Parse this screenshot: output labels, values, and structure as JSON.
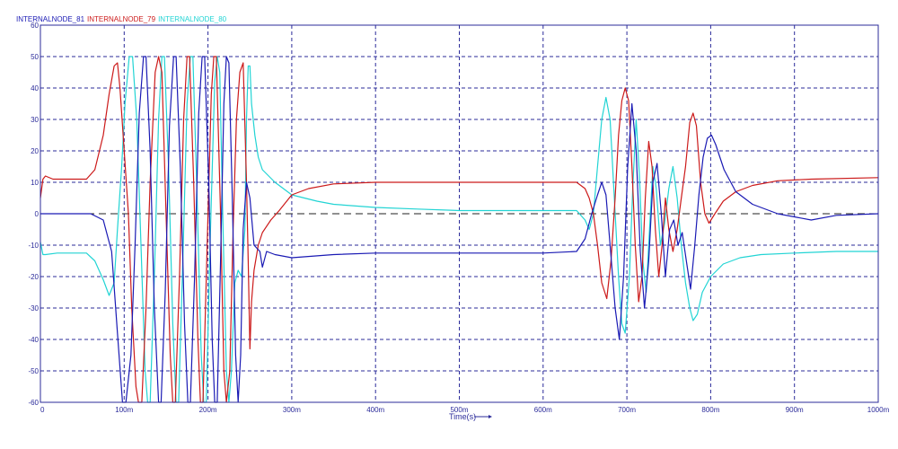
{
  "chart_data": {
    "type": "line",
    "xlabel": "Time(s)",
    "x_ticks": [
      "0",
      "100m",
      "200m",
      "300m",
      "400m",
      "500m",
      "600m",
      "700m",
      "800m",
      "900m",
      "1000m"
    ],
    "y_ticks": [
      "60",
      "50",
      "40",
      "30",
      "20",
      "10",
      "0",
      "-10",
      "-20",
      "-30",
      "-40",
      "-50",
      "-60"
    ],
    "xlim": [
      0,
      1000
    ],
    "ylim": [
      -60,
      60
    ],
    "grid": true,
    "legend_placement": "top-left",
    "series": [
      {
        "name": "INTERNALNODE_81",
        "color": "#1a1ab4",
        "points": [
          [
            0,
            0
          ],
          [
            60,
            0
          ],
          [
            75,
            -2
          ],
          [
            85,
            -12
          ],
          [
            92,
            -38
          ],
          [
            98,
            -60
          ],
          [
            102,
            -60
          ],
          [
            108,
            -45
          ],
          [
            113,
            -10
          ],
          [
            118,
            32
          ],
          [
            123,
            50
          ],
          [
            126,
            50
          ],
          [
            131,
            20
          ],
          [
            136,
            -30
          ],
          [
            141,
            -60
          ],
          [
            144,
            -60
          ],
          [
            149,
            -25
          ],
          [
            154,
            28
          ],
          [
            159,
            50
          ],
          [
            162,
            50
          ],
          [
            167,
            15
          ],
          [
            172,
            -35
          ],
          [
            176,
            -60
          ],
          [
            179,
            -60
          ],
          [
            184,
            -20
          ],
          [
            189,
            32
          ],
          [
            193,
            50
          ],
          [
            196,
            50
          ],
          [
            201,
            10
          ],
          [
            205,
            -40
          ],
          [
            208,
            -60
          ],
          [
            211,
            -60
          ],
          [
            215,
            -15
          ],
          [
            219,
            35
          ],
          [
            222,
            50
          ],
          [
            225,
            48
          ],
          [
            229,
            5
          ],
          [
            233,
            -45
          ],
          [
            236,
            -60
          ],
          [
            239,
            -45
          ],
          [
            242,
            -5
          ],
          [
            246,
            10
          ],
          [
            250,
            5
          ],
          [
            255,
            -10
          ],
          [
            262,
            -12
          ],
          [
            265,
            -17
          ],
          [
            270,
            -12
          ],
          [
            280,
            -13
          ],
          [
            300,
            -14
          ],
          [
            350,
            -13
          ],
          [
            400,
            -12.5
          ],
          [
            500,
            -12.5
          ],
          [
            600,
            -12.5
          ],
          [
            640,
            -12
          ],
          [
            650,
            -8
          ],
          [
            658,
            0
          ],
          [
            665,
            6
          ],
          [
            670,
            10
          ],
          [
            675,
            6
          ],
          [
            680,
            -10
          ],
          [
            686,
            -30
          ],
          [
            691,
            -40
          ],
          [
            696,
            -20
          ],
          [
            701,
            15
          ],
          [
            706,
            35
          ],
          [
            711,
            20
          ],
          [
            716,
            -12
          ],
          [
            721,
            -30
          ],
          [
            726,
            -15
          ],
          [
            731,
            10
          ],
          [
            736,
            16
          ],
          [
            741,
            0
          ],
          [
            746,
            -20
          ],
          [
            751,
            -5
          ],
          [
            756,
            -2
          ],
          [
            761,
            -10
          ],
          [
            766,
            -6
          ],
          [
            771,
            -15
          ],
          [
            776,
            -24
          ],
          [
            781,
            -10
          ],
          [
            786,
            6
          ],
          [
            791,
            18
          ],
          [
            796,
            24
          ],
          [
            801,
            25
          ],
          [
            806,
            22
          ],
          [
            816,
            14
          ],
          [
            830,
            7
          ],
          [
            850,
            3
          ],
          [
            880,
            0
          ],
          [
            920,
            -2
          ],
          [
            950,
            -0.5
          ],
          [
            1000,
            0
          ]
        ]
      },
      {
        "name": "INTERNALNODE_79",
        "color": "#cc1a1a",
        "points": [
          [
            0,
            5
          ],
          [
            3,
            11
          ],
          [
            6,
            12
          ],
          [
            15,
            11
          ],
          [
            55,
            11
          ],
          [
            65,
            14
          ],
          [
            75,
            25
          ],
          [
            82,
            38
          ],
          [
            88,
            47
          ],
          [
            92,
            48
          ],
          [
            95,
            40
          ],
          [
            100,
            20
          ],
          [
            105,
            0
          ],
          [
            109,
            -30
          ],
          [
            114,
            -55
          ],
          [
            117,
            -60
          ],
          [
            121,
            -60
          ],
          [
            126,
            -30
          ],
          [
            131,
            10
          ],
          [
            137,
            45
          ],
          [
            141,
            50
          ],
          [
            145,
            45
          ],
          [
            150,
            0
          ],
          [
            155,
            -45
          ],
          [
            158,
            -60
          ],
          [
            161,
            -60
          ],
          [
            166,
            -20
          ],
          [
            171,
            30
          ],
          [
            175,
            50
          ],
          [
            178,
            50
          ],
          [
            183,
            10
          ],
          [
            188,
            -40
          ],
          [
            191,
            -60
          ],
          [
            194,
            -60
          ],
          [
            199,
            -10
          ],
          [
            204,
            38
          ],
          [
            207,
            50
          ],
          [
            210,
            50
          ],
          [
            215,
            0
          ],
          [
            219,
            -50
          ],
          [
            222,
            -60
          ],
          [
            226,
            -50
          ],
          [
            230,
            -5
          ],
          [
            234,
            30
          ],
          [
            238,
            45
          ],
          [
            242,
            48
          ],
          [
            246,
            10
          ],
          [
            248,
            -15
          ],
          [
            250,
            -43
          ],
          [
            252,
            -28
          ],
          [
            255,
            -18
          ],
          [
            260,
            -10
          ],
          [
            265,
            -6
          ],
          [
            275,
            -2
          ],
          [
            285,
            1
          ],
          [
            300,
            6
          ],
          [
            320,
            8
          ],
          [
            350,
            9.5
          ],
          [
            400,
            10
          ],
          [
            500,
            10
          ],
          [
            600,
            10
          ],
          [
            640,
            10
          ],
          [
            650,
            8
          ],
          [
            655,
            5
          ],
          [
            660,
            0
          ],
          [
            665,
            -10
          ],
          [
            670,
            -22
          ],
          [
            676,
            -27
          ],
          [
            681,
            -15
          ],
          [
            686,
            5
          ],
          [
            690,
            25
          ],
          [
            694,
            36
          ],
          [
            698,
            40
          ],
          [
            702,
            36
          ],
          [
            706,
            15
          ],
          [
            710,
            -10
          ],
          [
            714,
            -28
          ],
          [
            718,
            -20
          ],
          [
            722,
            5
          ],
          [
            726,
            23
          ],
          [
            730,
            15
          ],
          [
            734,
            -5
          ],
          [
            738,
            -20
          ],
          [
            742,
            -10
          ],
          [
            746,
            5
          ],
          [
            750,
            -5
          ],
          [
            755,
            -12
          ],
          [
            760,
            -5
          ],
          [
            765,
            5
          ],
          [
            770,
            15
          ],
          [
            775,
            29
          ],
          [
            779,
            32
          ],
          [
            783,
            28
          ],
          [
            788,
            10
          ],
          [
            793,
            0
          ],
          [
            798,
            -3
          ],
          [
            805,
            0
          ],
          [
            815,
            4
          ],
          [
            830,
            7
          ],
          [
            850,
            9
          ],
          [
            880,
            10.5
          ],
          [
            920,
            11
          ],
          [
            1000,
            11.5
          ]
        ]
      },
      {
        "name": "INTERNALNODE_80",
        "color": "#22d4d4",
        "points": [
          [
            0,
            -9
          ],
          [
            3,
            -13
          ],
          [
            6,
            -13
          ],
          [
            20,
            -12.5
          ],
          [
            55,
            -12.5
          ],
          [
            65,
            -15
          ],
          [
            75,
            -21
          ],
          [
            82,
            -26
          ],
          [
            88,
            -22
          ],
          [
            92,
            -5
          ],
          [
            97,
            15
          ],
          [
            101,
            35
          ],
          [
            106,
            50
          ],
          [
            110,
            50
          ],
          [
            115,
            30
          ],
          [
            120,
            -10
          ],
          [
            125,
            -50
          ],
          [
            128,
            -60
          ],
          [
            131,
            -60
          ],
          [
            136,
            -20
          ],
          [
            141,
            30
          ],
          [
            145,
            50
          ],
          [
            148,
            50
          ],
          [
            153,
            15
          ],
          [
            158,
            -35
          ],
          [
            162,
            -60
          ],
          [
            165,
            -60
          ],
          [
            170,
            -15
          ],
          [
            175,
            35
          ],
          [
            179,
            50
          ],
          [
            182,
            50
          ],
          [
            187,
            5
          ],
          [
            192,
            -45
          ],
          [
            195,
            -60
          ],
          [
            198,
            -60
          ],
          [
            203,
            -5
          ],
          [
            208,
            42
          ],
          [
            211,
            50
          ],
          [
            214,
            45
          ],
          [
            218,
            -5
          ],
          [
            222,
            -50
          ],
          [
            225,
            -60
          ],
          [
            228,
            -50
          ],
          [
            232,
            -22
          ],
          [
            236,
            -18
          ],
          [
            240,
            -20
          ],
          [
            244,
            -5
          ],
          [
            246,
            30
          ],
          [
            248,
            47
          ],
          [
            250,
            47
          ],
          [
            252,
            35
          ],
          [
            256,
            25
          ],
          [
            260,
            18
          ],
          [
            265,
            14
          ],
          [
            280,
            10
          ],
          [
            300,
            6
          ],
          [
            330,
            4
          ],
          [
            350,
            3
          ],
          [
            400,
            2
          ],
          [
            450,
            1.5
          ],
          [
            500,
            1
          ],
          [
            600,
            1
          ],
          [
            640,
            1
          ],
          [
            650,
            -2
          ],
          [
            655,
            -5
          ],
          [
            660,
            0
          ],
          [
            665,
            15
          ],
          [
            670,
            30
          ],
          [
            675,
            37
          ],
          [
            680,
            30
          ],
          [
            685,
            5
          ],
          [
            690,
            -20
          ],
          [
            694,
            -35
          ],
          [
            698,
            -38
          ],
          [
            703,
            -20
          ],
          [
            707,
            8
          ],
          [
            711,
            30
          ],
          [
            715,
            12
          ],
          [
            719,
            -15
          ],
          [
            723,
            -25
          ],
          [
            727,
            -5
          ],
          [
            731,
            15
          ],
          [
            735,
            8
          ],
          [
            740,
            -10
          ],
          [
            745,
            -3
          ],
          [
            750,
            8
          ],
          [
            755,
            15
          ],
          [
            760,
            5
          ],
          [
            765,
            -10
          ],
          [
            770,
            -22
          ],
          [
            775,
            -30
          ],
          [
            779,
            -34
          ],
          [
            784,
            -32
          ],
          [
            790,
            -25
          ],
          [
            800,
            -20
          ],
          [
            815,
            -16
          ],
          [
            835,
            -14
          ],
          [
            860,
            -13
          ],
          [
            900,
            -12.5
          ],
          [
            950,
            -12
          ],
          [
            1000,
            -12
          ]
        ]
      }
    ]
  }
}
